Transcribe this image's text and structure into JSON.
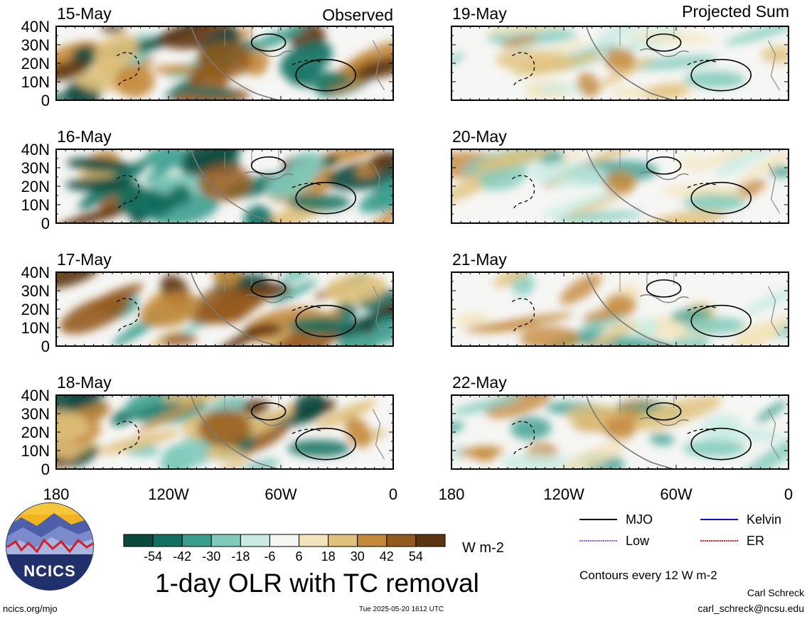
{
  "figure": {
    "title": "1-day OLR with TC removal",
    "units": "W m-2",
    "contour_note": "Contours every 12 W m-2",
    "author": "Carl Schreck",
    "email": "carl_schreck@ncsu.edu",
    "website": "ncics.org/mjo",
    "timestamp": "Tue 2025-05-20 1612 UTC",
    "logo_text": "NCICS"
  },
  "columns": {
    "left_label": "Observed",
    "right_label": "Projected Sum"
  },
  "panels_left": [
    {
      "date": "15-May"
    },
    {
      "date": "16-May"
    },
    {
      "date": "17-May"
    },
    {
      "date": "18-May"
    }
  ],
  "panels_right": [
    {
      "date": "19-May"
    },
    {
      "date": "20-May"
    },
    {
      "date": "21-May"
    },
    {
      "date": "22-May"
    }
  ],
  "axes": {
    "y_ticks": [
      "40N",
      "30N",
      "20N",
      "10N",
      "0"
    ],
    "x_ticks": [
      "180",
      "120W",
      "60W",
      "0"
    ]
  },
  "colorbar": {
    "labels": [
      "-54",
      "-42",
      "-30",
      "-18",
      "-6",
      "6",
      "18",
      "30",
      "42",
      "54"
    ],
    "colors": [
      "#0a4a3e",
      "#13705f",
      "#3a9e8e",
      "#7fcabb",
      "#c8ece4",
      "#f6f6f4",
      "#f3e3b8",
      "#e0c07a",
      "#c4883b",
      "#955a1d",
      "#5c3510"
    ]
  },
  "legend": [
    {
      "name": "MJO",
      "color": "#000000"
    },
    {
      "name": "Kelvin",
      "color": "#1010d0"
    },
    {
      "name": "Low",
      "color": "#9a55d8"
    },
    {
      "name": "ER",
      "color": "#e02020"
    }
  ]
}
